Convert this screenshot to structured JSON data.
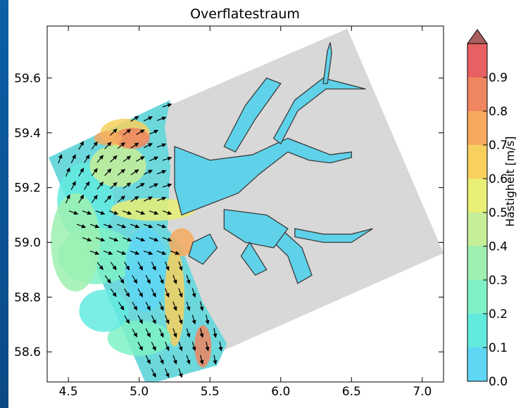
{
  "chart_data": {
    "type": "map",
    "title": "Overflatestraum",
    "xlim": [
      4.35,
      7.15
    ],
    "ylim": [
      58.49,
      59.79
    ],
    "x_ticks": [
      "4.5",
      "5.0",
      "5.5",
      "6.0",
      "6.5",
      "7.0"
    ],
    "x_tick_values": [
      4.5,
      5.0,
      5.5,
      6.0,
      6.5,
      7.0
    ],
    "y_ticks": [
      "58.6",
      "58.8",
      "59.0",
      "59.2",
      "59.4",
      "59.6"
    ],
    "y_tick_values": [
      58.6,
      58.8,
      59.0,
      59.2,
      59.4,
      59.6
    ],
    "colorbar": {
      "label": "Hastigheit [m/s]",
      "tick_labels": [
        "0.0",
        "0.1",
        "0.2",
        "0.3",
        "0.4",
        "0.5",
        "0.6",
        "0.7",
        "0.8",
        "0.9"
      ],
      "tick_values": [
        0.0,
        0.1,
        0.2,
        0.3,
        0.4,
        0.5,
        0.6,
        0.7,
        0.8,
        0.9
      ],
      "colors": [
        "#5fd6f4",
        "#63eadf",
        "#7ef2c6",
        "#9ef0b0",
        "#c5ee97",
        "#e9ef74",
        "#f7d05e",
        "#f6aa5e",
        "#ef8660",
        "#e86162"
      ],
      "extend_color": "#a95f5f"
    },
    "domain_corners": [
      {
        "lon": 4.36,
        "lat": 59.31
      },
      {
        "lon": 6.47,
        "lat": 59.78
      },
      {
        "lon": 7.15,
        "lat": 58.96
      },
      {
        "lon": 5.05,
        "lat": 58.48
      }
    ],
    "colors": {
      "land": "#d8d8d8",
      "water_low": "#5fd6f4",
      "coastline": "#444444",
      "arrow": "#000000"
    }
  }
}
